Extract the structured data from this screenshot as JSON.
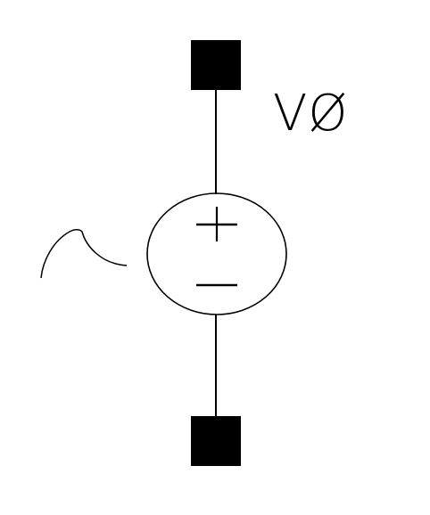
{
  "component": {
    "label": "VØ",
    "type_icon": "voltage-source-icon",
    "signal_icon": "sine-wave-icon",
    "polarity_plus": "+",
    "polarity_minus": "−"
  },
  "colors": {
    "background": "#ffffff",
    "line": "#000000",
    "pin_fill": "#000000"
  }
}
